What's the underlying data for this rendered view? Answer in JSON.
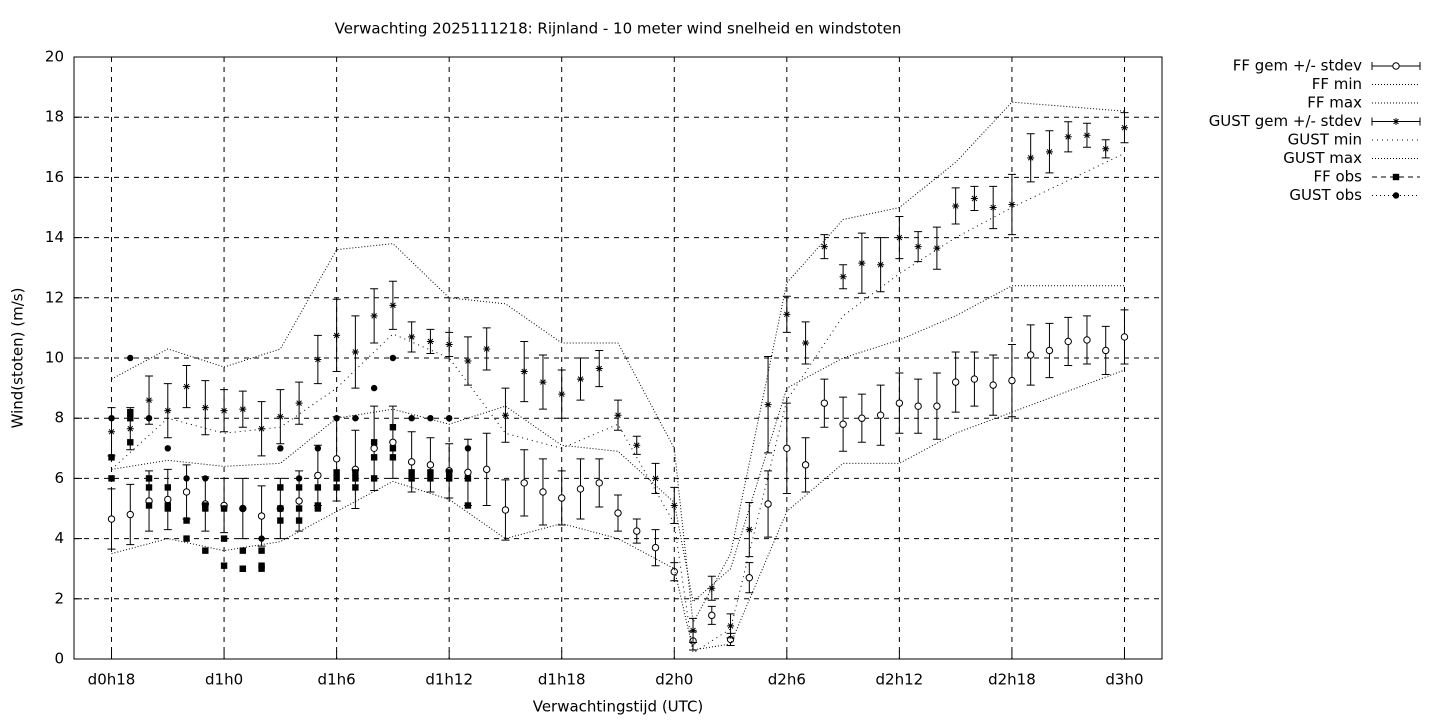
{
  "chart_data": {
    "type": "line",
    "title": "Verwachting 2025111218: Rijnland - 10 meter wind snelheid en windstoten",
    "x_label": "Verwachtingstijd (UTC)",
    "y_label": "Wind(stoten) (m/s)",
    "xlim": [
      16,
      74
    ],
    "xticks": [
      {
        "value": 18,
        "label": "d0h18"
      },
      {
        "value": 24,
        "label": "d1h0"
      },
      {
        "value": 30,
        "label": "d1h6"
      },
      {
        "value": 36,
        "label": "d1h12"
      },
      {
        "value": 42,
        "label": "d1h18"
      },
      {
        "value": 48,
        "label": "d2h0"
      },
      {
        "value": 54,
        "label": "d2h6"
      },
      {
        "value": 60,
        "label": "d2h12"
      },
      {
        "value": 66,
        "label": "d2h18"
      },
      {
        "value": 72,
        "label": "d3h0"
      }
    ],
    "ylim": [
      0,
      20
    ],
    "yticks": [
      0,
      2,
      4,
      6,
      8,
      10,
      12,
      14,
      16,
      18,
      20
    ],
    "grid": true,
    "legend": "outside-right",
    "x": [
      18,
      19,
      20,
      21,
      22,
      23,
      24,
      25,
      26,
      27,
      28,
      29,
      30,
      31,
      32,
      33,
      34,
      35,
      36,
      37,
      38,
      39,
      40,
      41,
      42,
      43,
      44,
      45,
      46,
      47,
      48,
      49,
      50,
      51,
      52,
      53,
      54,
      55,
      56,
      57,
      58,
      59,
      60,
      61,
      62,
      63,
      64,
      65,
      66,
      67,
      68,
      69,
      70,
      71,
      72
    ],
    "series": [
      {
        "name": "FF gem +/- stdev",
        "color": "#000000",
        "style": "errorbars",
        "marker": "circle-open",
        "values": [
          4.65,
          4.8,
          5.25,
          5.3,
          5.55,
          5.15,
          5.1,
          5.0,
          4.75,
          5.0,
          5.25,
          6.1,
          6.65,
          6.3,
          7.0,
          7.2,
          6.55,
          6.45,
          6.25,
          6.2,
          6.3,
          4.95,
          5.85,
          5.55,
          5.35,
          5.65,
          5.85,
          4.85,
          4.25,
          3.7,
          2.9,
          0.6,
          1.45,
          0.65,
          2.7,
          5.15,
          7.0,
          6.45,
          8.5,
          7.8,
          8.0,
          8.1,
          8.5,
          8.4,
          8.4,
          9.2,
          9.3,
          9.1,
          9.25,
          10.1,
          10.25,
          10.55,
          10.6,
          10.25,
          10.7
        ],
        "errors": [
          1.0,
          1.0,
          1.0,
          1.0,
          0.9,
          0.9,
          0.9,
          1.0,
          1.0,
          1.0,
          1.0,
          1.0,
          1.4,
          1.3,
          1.4,
          1.2,
          1.0,
          0.9,
          0.9,
          1.1,
          1.2,
          1.0,
          1.1,
          1.1,
          0.9,
          1.0,
          0.8,
          0.6,
          0.4,
          0.6,
          0.3,
          0.3,
          0.3,
          0.2,
          0.5,
          1.1,
          1.5,
          0.9,
          0.8,
          0.9,
          0.8,
          1.0,
          1.0,
          0.9,
          1.1,
          1.0,
          0.9,
          1.0,
          1.2,
          1.0,
          0.9,
          0.8,
          0.8,
          0.8,
          0.9
        ]
      },
      {
        "name": "FF min",
        "color": "#000000",
        "style": "line",
        "dash": "1,2",
        "x": [
          18,
          21,
          24,
          27,
          30,
          33,
          36,
          39,
          42,
          45,
          48,
          49,
          51,
          54,
          57,
          60,
          63,
          66,
          72
        ],
        "values": [
          3.5,
          4.0,
          3.6,
          3.9,
          4.9,
          5.9,
          5.3,
          4.0,
          4.5,
          4.0,
          3.0,
          0.3,
          0.5,
          4.9,
          6.5,
          6.5,
          7.5,
          8.2,
          9.6
        ]
      },
      {
        "name": "FF max",
        "color": "#000000",
        "style": "line",
        "dash": "1,2",
        "x": [
          18,
          21,
          24,
          27,
          30,
          33,
          36,
          39,
          42,
          45,
          48,
          49,
          51,
          54,
          57,
          60,
          63,
          66,
          72
        ],
        "values": [
          6.3,
          6.6,
          6.4,
          6.5,
          8.0,
          8.3,
          7.8,
          8.4,
          7.1,
          6.9,
          5.2,
          1.9,
          3.0,
          9.0,
          10.0,
          10.6,
          11.4,
          12.4,
          12.4
        ]
      },
      {
        "name": "GUST gem +/- stdev",
        "color": "#000000",
        "style": "errorbars",
        "marker": "star",
        "values": [
          7.55,
          7.65,
          8.6,
          8.25,
          9.05,
          8.35,
          8.25,
          8.3,
          7.65,
          8.05,
          8.5,
          9.95,
          10.75,
          10.2,
          11.4,
          11.75,
          10.7,
          10.55,
          10.45,
          9.9,
          10.3,
          8.1,
          9.55,
          9.2,
          8.8,
          9.3,
          9.65,
          8.1,
          7.1,
          6.0,
          5.1,
          0.95,
          2.35,
          1.1,
          4.3,
          8.45,
          11.45,
          10.5,
          13.7,
          12.7,
          13.15,
          13.1,
          14.0,
          13.7,
          13.65,
          15.05,
          15.3,
          15.0,
          15.1,
          16.65,
          16.85,
          17.35,
          17.4,
          16.95,
          17.65
        ],
        "errors": [
          0.8,
          0.7,
          0.8,
          0.9,
          0.7,
          0.9,
          0.7,
          0.6,
          0.9,
          0.9,
          0.7,
          0.8,
          1.2,
          1.2,
          0.9,
          0.8,
          0.5,
          0.4,
          0.4,
          0.8,
          0.7,
          0.9,
          1.0,
          0.9,
          0.8,
          0.7,
          0.6,
          0.5,
          0.3,
          0.5,
          0.6,
          0.4,
          0.4,
          0.4,
          0.9,
          1.6,
          0.6,
          0.7,
          0.4,
          0.4,
          1.0,
          0.9,
          0.7,
          0.5,
          0.7,
          0.6,
          0.4,
          0.7,
          1.0,
          0.8,
          0.7,
          0.5,
          0.4,
          0.3,
          0.5
        ]
      },
      {
        "name": "GUST min",
        "color": "#000000",
        "style": "line",
        "dash": "1,4",
        "x": [
          18,
          21,
          24,
          27,
          30,
          33,
          36,
          39,
          42,
          45,
          48,
          49,
          51,
          54,
          57,
          60,
          63,
          66,
          72
        ],
        "values": [
          6.3,
          8.0,
          7.5,
          7.7,
          9.0,
          10.8,
          10.0,
          7.5,
          7.0,
          7.8,
          4.5,
          0.2,
          1.0,
          8.6,
          11.4,
          12.8,
          14.0,
          15.0,
          16.8
        ]
      },
      {
        "name": "GUST max",
        "color": "#000000",
        "style": "line",
        "dash": "1,2",
        "x": [
          18,
          21,
          24,
          27,
          30,
          33,
          36,
          39,
          42,
          45,
          48,
          49,
          51,
          54,
          57,
          60,
          63,
          66,
          72
        ],
        "values": [
          9.3,
          10.3,
          9.7,
          10.3,
          13.6,
          13.8,
          12.0,
          11.8,
          10.5,
          10.5,
          7.0,
          1.2,
          3.5,
          12.5,
          14.6,
          15.0,
          16.5,
          18.5,
          18.2
        ]
      },
      {
        "name": "FF obs",
        "color": "#000000",
        "style": "points",
        "marker": "square",
        "dash": "5,4",
        "x": [
          18,
          18,
          19,
          19,
          19,
          20,
          20,
          20,
          21,
          21,
          21,
          22,
          22,
          23,
          23,
          23,
          24,
          24,
          24,
          25,
          25,
          25,
          26,
          26,
          26,
          27,
          27,
          27,
          28,
          28,
          28,
          29,
          29,
          29,
          30,
          30,
          30,
          31,
          31,
          31,
          32,
          32,
          32,
          33,
          33,
          33,
          34,
          34,
          35,
          35,
          36,
          36,
          37,
          37
        ],
        "values": [
          6.7,
          6.0,
          8.2,
          8.0,
          7.2,
          6.0,
          5.7,
          5.1,
          5.7,
          5.1,
          5.0,
          4.6,
          4.0,
          5.0,
          3.6,
          5.1,
          4.0,
          3.1,
          5.0,
          3.6,
          3.0,
          3.0,
          3.6,
          3.1,
          3.0,
          5.7,
          5.0,
          4.6,
          5.7,
          5.0,
          4.6,
          5.7,
          5.1,
          5.0,
          6.2,
          6.0,
          5.7,
          6.2,
          6.0,
          5.7,
          7.2,
          6.7,
          6.0,
          7.7,
          7.0,
          6.7,
          6.2,
          6.0,
          6.2,
          6.0,
          6.2,
          6.0,
          6.0,
          5.1
        ]
      },
      {
        "name": "GUST obs",
        "color": "#000000",
        "style": "points",
        "marker": "circle",
        "dash": "1,3",
        "x": [
          18,
          19,
          20,
          21,
          22,
          23,
          24,
          25,
          26,
          27,
          28,
          29,
          30,
          31,
          32,
          33,
          34,
          35,
          36,
          37
        ],
        "values": [
          8.0,
          10.0,
          8.0,
          7.0,
          6.0,
          6.0,
          5.0,
          5.0,
          4.0,
          7.0,
          6.0,
          7.0,
          8.0,
          8.0,
          9.0,
          10.0,
          8.0,
          8.0,
          8.0,
          7.0
        ]
      }
    ]
  }
}
